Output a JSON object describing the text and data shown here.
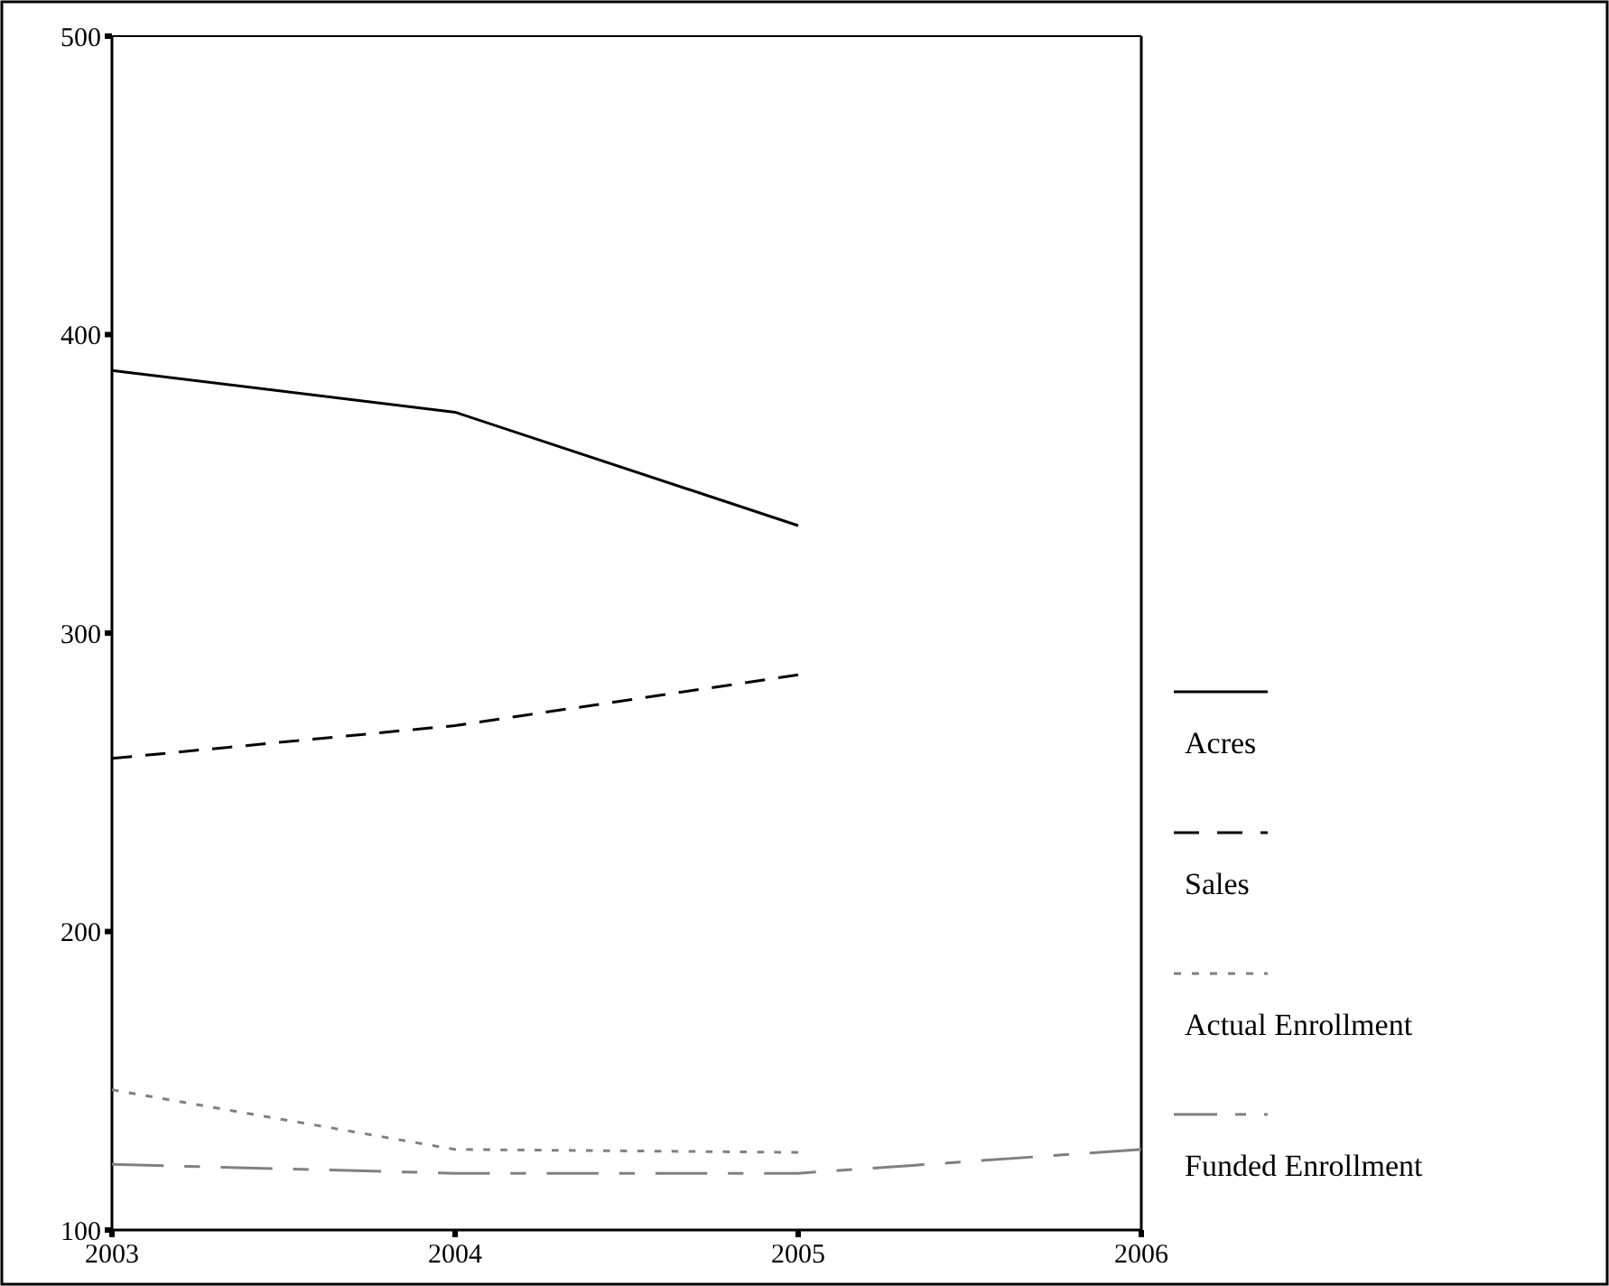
{
  "chart_data": {
    "type": "line",
    "x": [
      2003,
      2004,
      2005,
      2006
    ],
    "xlim": [
      2003,
      2006
    ],
    "xticks": [
      2003,
      2004,
      2005,
      2006
    ],
    "ylim": [
      100,
      500
    ],
    "yticks": [
      100,
      200,
      300,
      400,
      500
    ],
    "grid": false,
    "legend": "right",
    "series": [
      {
        "name": "Acres",
        "color": "#000000",
        "line_style": "solid",
        "values": [
          388,
          374,
          336,
          null
        ]
      },
      {
        "name": "Sales",
        "color": "#000000",
        "line_style": "dashed",
        "values": [
          258,
          269,
          286,
          null
        ]
      },
      {
        "name": "Actual Enrollment",
        "color": "#808080",
        "line_style": "dotted",
        "values": [
          147,
          127,
          126,
          null
        ]
      },
      {
        "name": "Funded Enrollment",
        "color": "#808080",
        "line_style": "dashdot",
        "values": [
          122,
          119,
          119,
          127
        ]
      }
    ]
  }
}
